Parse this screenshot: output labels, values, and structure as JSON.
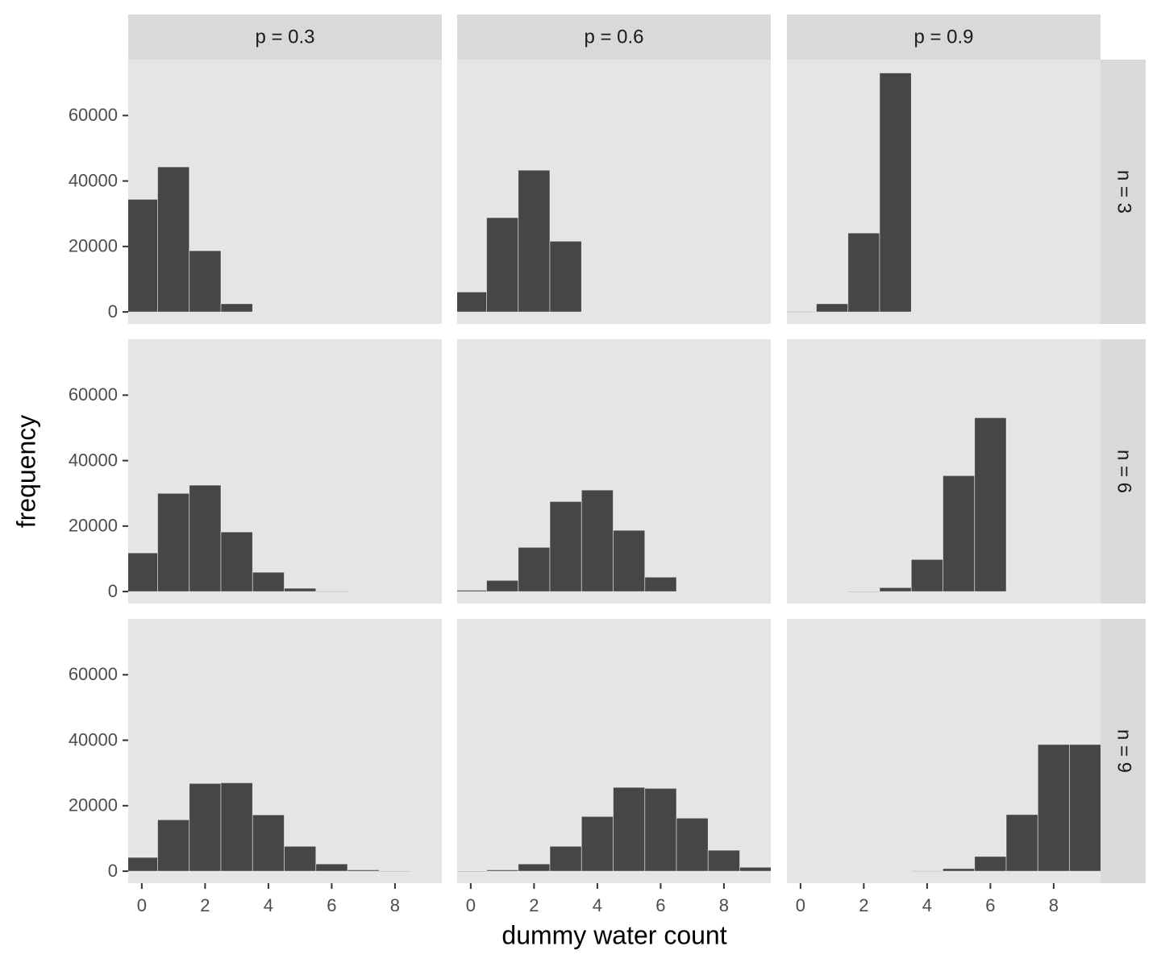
{
  "chart_data": {
    "type": "histogram",
    "xlabel": "dummy water count",
    "ylabel": "frequency",
    "facet_columns": [
      "p = 0.3",
      "p = 0.6",
      "p = 0.9"
    ],
    "facet_rows": [
      "n = 3",
      "n = 6",
      "n = 9"
    ],
    "bins": [
      -0.5,
      0.5,
      1.5,
      2.5,
      3.5,
      4.5,
      5.5,
      6.5,
      7.5,
      8.5,
      9.5
    ],
    "xlim": [
      -0.43,
      9.48
    ],
    "xticks": [
      0,
      2,
      4,
      6,
      8
    ],
    "ylim": [
      -3670,
      77070
    ],
    "yticks": [
      0,
      20000,
      40000,
      60000
    ],
    "color": "#464646",
    "grid": false,
    "panels": [
      [
        [
          34400,
          44300,
          18700,
          2500,
          0,
          0,
          0,
          0,
          0,
          0
        ],
        [
          6100,
          28800,
          43300,
          21600,
          0,
          0,
          0,
          0,
          0,
          0
        ],
        [
          100,
          2500,
          24100,
          73000,
          0,
          0,
          0,
          0,
          0,
          0
        ]
      ],
      [
        [
          11800,
          30000,
          32500,
          18200,
          5900,
          1000,
          100,
          0,
          0,
          0
        ],
        [
          400,
          3400,
          13500,
          27500,
          31000,
          18700,
          4400,
          0,
          0,
          0
        ],
        [
          0,
          0,
          50,
          1200,
          9800,
          35400,
          53100,
          0,
          0,
          0
        ]
      ],
      [
        [
          4200,
          15700,
          26800,
          27000,
          17200,
          7600,
          2200,
          400,
          50,
          0
        ],
        [
          30,
          400,
          2200,
          7600,
          16700,
          25600,
          25300,
          16200,
          6400,
          1200
        ],
        [
          0,
          0,
          0,
          0,
          100,
          800,
          4500,
          17300,
          38700,
          38700
        ]
      ]
    ]
  }
}
